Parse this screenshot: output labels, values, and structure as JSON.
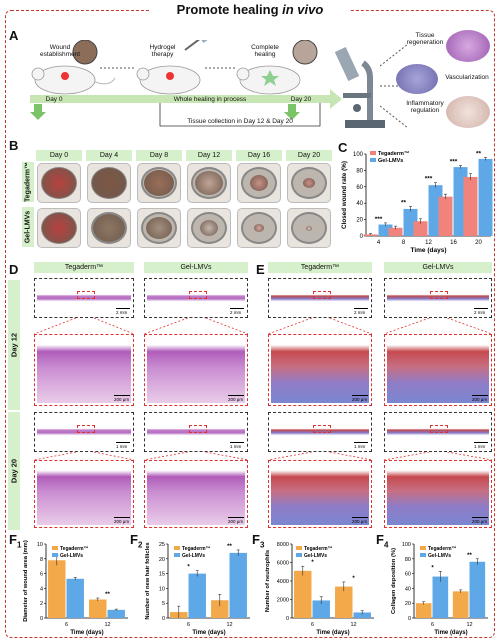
{
  "figure_title_pre": "Promote healing ",
  "figure_title_em": "in vivo",
  "panel_labels": {
    "A": "A",
    "B": "B",
    "C": "C",
    "D": "D",
    "E": "E",
    "F1": "F",
    "F1s": "1",
    "F2": "F",
    "F2s": "2",
    "F3": "F",
    "F3s": "3",
    "F4": "F",
    "F4s": "4"
  },
  "schematic": {
    "wound_establishment": "Wound\nestablishment",
    "hydrogel_therapy": "Hydrogel\ntherapy",
    "complete_healing": "Complete\nhealing",
    "day0": "Day 0",
    "day20": "Day 20",
    "process": "Whole healing in process",
    "collection": "Tissue collection in Day 12 & Day 20",
    "tissue_regeneration": "Tissue\nregeneration",
    "vascularization": "Vascularization",
    "inflammatory_regulation": "Inflammatory\nregulation"
  },
  "photo_days": [
    "Day 0",
    "Day 4",
    "Day 8",
    "Day 12",
    "Day 16",
    "Day 20"
  ],
  "photo_rows": [
    "Tegaderm™",
    "Gel-LMVs"
  ],
  "histology": {
    "groups_D": [
      "Tegaderm™",
      "Gel-LMVs"
    ],
    "groups_E": [
      "Tegaderm™",
      "Gel-LMVs"
    ],
    "rows": [
      "Day 12",
      "Day 20"
    ],
    "scale_2mm": "2 mm",
    "scale_200um": "200 μm",
    "scale_1mm": "1 mm"
  },
  "colors": {
    "tegaderm": "#f0837c",
    "gel": "#5fa8e8",
    "tegaderm_F": "#f3a84a",
    "gel_F": "#5fa8e8",
    "frame": "#c0392b"
  },
  "chart_data": [
    {
      "id": "C",
      "type": "bar",
      "xlabel": "Time (days)",
      "ylabel": "Closed wound rate (%)",
      "categories": [
        "4",
        "8",
        "12",
        "16",
        "20"
      ],
      "ylim": [
        0,
        100
      ],
      "yticks": [
        0,
        20,
        40,
        60,
        80,
        100
      ],
      "legend": [
        "Tegaderm™",
        "Gel-LMVs"
      ],
      "series": [
        {
          "name": "Tegaderm™",
          "values": [
            2,
            10,
            18,
            48,
            72
          ],
          "err": [
            1,
            2,
            3,
            3,
            4
          ]
        },
        {
          "name": "Gel-LMVs",
          "values": [
            14,
            33,
            62,
            84,
            94
          ],
          "err": [
            2,
            3,
            3,
            2,
            2
          ]
        }
      ],
      "sig": [
        "***",
        "**",
        "***",
        "***",
        "**"
      ]
    },
    {
      "id": "F1",
      "type": "bar",
      "xlabel": "Time (days)",
      "ylabel": "Diameter of wound area (mm)",
      "categories": [
        "6",
        "12"
      ],
      "ylim": [
        0,
        10
      ],
      "yticks": [
        0,
        2,
        4,
        6,
        8,
        10
      ],
      "legend": [
        "Tegaderm™",
        "Gel-LMVs"
      ],
      "series": [
        {
          "name": "Tegaderm™",
          "values": [
            7.8,
            2.5
          ],
          "err": [
            0.7,
            0.2
          ]
        },
        {
          "name": "Gel-LMVs",
          "values": [
            5.3,
            1.1
          ],
          "err": [
            0.2,
            0.1
          ]
        }
      ],
      "sig": [
        "",
        "**"
      ]
    },
    {
      "id": "F2",
      "type": "bar",
      "xlabel": "Time (days)",
      "ylabel": "Number of new hair follicles",
      "categories": [
        "6",
        "12"
      ],
      "ylim": [
        0,
        25
      ],
      "yticks": [
        0,
        5,
        10,
        15,
        20,
        25
      ],
      "legend": [
        "Tegaderm™",
        "Gel-LMVs"
      ],
      "series": [
        {
          "name": "Tegaderm™",
          "values": [
            2,
            6
          ],
          "err": [
            2,
            2
          ]
        },
        {
          "name": "Gel-LMVs",
          "values": [
            15,
            22
          ],
          "err": [
            1,
            1
          ]
        }
      ],
      "sig": [
        "*",
        "**"
      ]
    },
    {
      "id": "F3",
      "type": "bar",
      "xlabel": "Time (days)",
      "ylabel": "Number of neutrophils",
      "categories": [
        "6",
        "12"
      ],
      "ylim": [
        0,
        8000
      ],
      "yticks": [
        0,
        2000,
        4000,
        6000,
        8000
      ],
      "legend": [
        "Tegaderm™",
        "Gel-LMVs"
      ],
      "series": [
        {
          "name": "Tegaderm™",
          "values": [
            5100,
            3400
          ],
          "err": [
            500,
            500
          ]
        },
        {
          "name": "Gel-LMVs",
          "values": [
            1900,
            600
          ],
          "err": [
            400,
            200
          ]
        }
      ],
      "sig": [
        "*",
        "*"
      ]
    },
    {
      "id": "F4",
      "type": "bar",
      "xlabel": "Time (days)",
      "ylabel": "Collagen deposition (%)",
      "categories": [
        "6",
        "12"
      ],
      "ylim": [
        0,
        100
      ],
      "yticks": [
        0,
        20,
        40,
        60,
        80,
        100
      ],
      "legend": [
        "Tegaderm™",
        "Gel-LMVs"
      ],
      "series": [
        {
          "name": "Tegaderm™",
          "values": [
            20,
            36
          ],
          "err": [
            2,
            2
          ]
        },
        {
          "name": "Gel-LMVs",
          "values": [
            56,
            76
          ],
          "err": [
            7,
            4
          ]
        }
      ],
      "sig": [
        "*",
        "**"
      ]
    }
  ]
}
